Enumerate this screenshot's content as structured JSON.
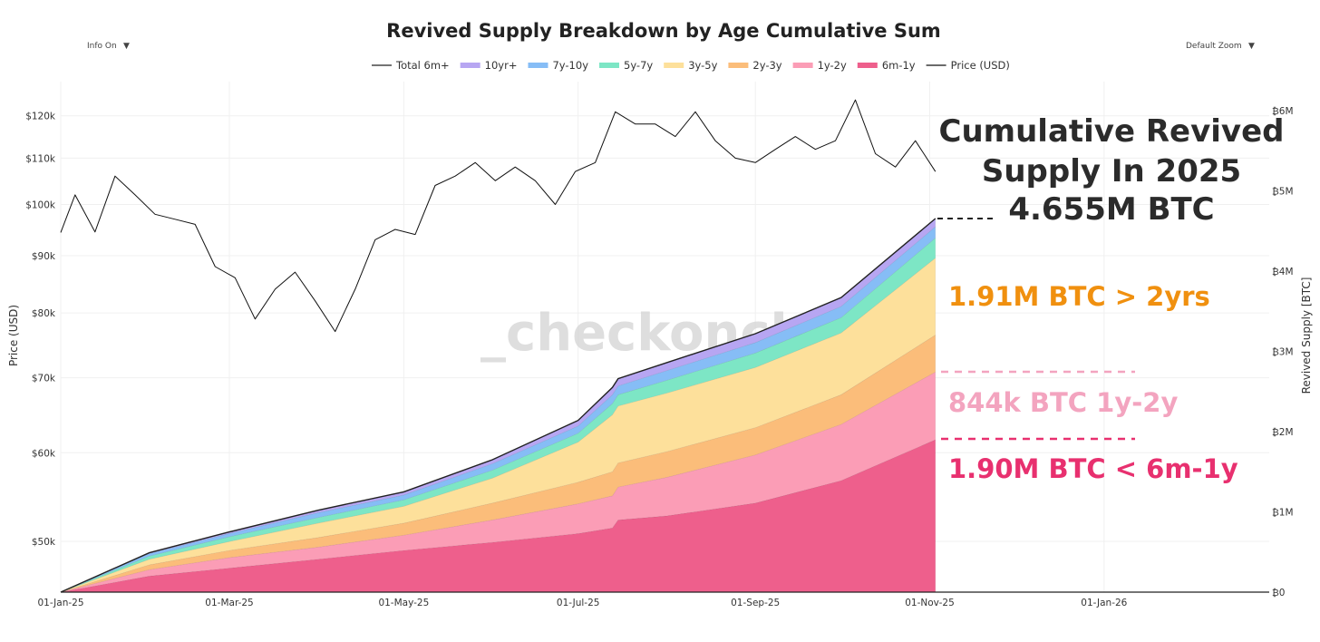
{
  "controls": {
    "info_label": "Info On",
    "zoom_label": "Default Zoom",
    "caret": "▼"
  },
  "watermark": "_checkonchain",
  "annotations": {
    "headline_line1": "Cumulative Revived",
    "headline_line2": "Supply In 2025",
    "headline_line3": "4.655M BTC",
    "over2y": "1.91M BTC > 2yrs",
    "y1to2": "844k BTC 1y-2y",
    "m6to1y": "1.90M BTC < 6m-1y",
    "over2y_color": "#f0900f",
    "y1to2_color": "#f3a4bf",
    "m6to1y_color": "#e8306f"
  },
  "chart_data": {
    "type": "area",
    "title": "Revived Supply Breakdown by Age Cumulative Sum",
    "xlabel": "",
    "ylabel_left": "Price (USD)",
    "ylabel_right": "Revived Supply [BTC]",
    "left_axis_scale": "log",
    "left_ticks": [
      {
        "v": 50000,
        "label": "$50k"
      },
      {
        "v": 60000,
        "label": "$60k"
      },
      {
        "v": 70000,
        "label": "$70k"
      },
      {
        "v": 80000,
        "label": "$80k"
      },
      {
        "v": 90000,
        "label": "$90k"
      },
      {
        "v": 100000,
        "label": "$100k"
      },
      {
        "v": 110000,
        "label": "$110k"
      },
      {
        "v": 120000,
        "label": "$120k"
      }
    ],
    "right_ticks": [
      {
        "v": 0,
        "label": "₿0"
      },
      {
        "v": 1,
        "label": "₿1M"
      },
      {
        "v": 2,
        "label": "₿2M"
      },
      {
        "v": 3,
        "label": "₿3M"
      },
      {
        "v": 4,
        "label": "₿4M"
      },
      {
        "v": 5,
        "label": "₿5M"
      },
      {
        "v": 6,
        "label": "₿6M"
      }
    ],
    "x_ticks": [
      {
        "date": "2025-01-01",
        "label": "01-Jan-25"
      },
      {
        "date": "2025-03-01",
        "label": "01-Mar-25"
      },
      {
        "date": "2025-05-01",
        "label": "01-May-25"
      },
      {
        "date": "2025-07-01",
        "label": "01-Jul-25"
      },
      {
        "date": "2025-09-01",
        "label": "01-Sep-25"
      },
      {
        "date": "2025-11-01",
        "label": "01-Nov-25"
      },
      {
        "date": "2026-01-01",
        "label": "01-Jan-26"
      }
    ],
    "xlim": [
      "2025-01-01",
      "2026-02-15"
    ],
    "ylim_right": [
      0,
      6
    ],
    "ylim_left": [
      44000,
      128000
    ],
    "grid": true,
    "legend_placement": "top-center",
    "legend": [
      {
        "name": "Total 6m+",
        "kind": "line",
        "color": "#222222"
      },
      {
        "name": "10yr+",
        "kind": "area",
        "color": "#b7a6f2"
      },
      {
        "name": "7y-10y",
        "kind": "area",
        "color": "#86bdf6"
      },
      {
        "name": "5y-7y",
        "kind": "area",
        "color": "#7de6c5"
      },
      {
        "name": "3y-5y",
        "kind": "area",
        "color": "#fde09b"
      },
      {
        "name": "2y-3y",
        "kind": "area",
        "color": "#fbbd7a"
      },
      {
        "name": "1y-2y",
        "kind": "area",
        "color": "#fb9db6"
      },
      {
        "name": "6m-1y",
        "kind": "area",
        "color": "#ee5f8c"
      },
      {
        "name": "Price (USD)",
        "kind": "line",
        "color": "#111111"
      }
    ],
    "supply_dates": [
      "2025-01-01",
      "2025-02-01",
      "2025-03-01",
      "2025-04-01",
      "2025-05-01",
      "2025-06-01",
      "2025-07-01",
      "2025-07-13",
      "2025-07-15",
      "2025-08-01",
      "2025-09-01",
      "2025-10-01",
      "2025-11-03"
    ],
    "supply_unit": "M BTC",
    "series": [
      {
        "name": "6m-1y",
        "values": [
          0,
          0.2,
          0.3,
          0.41,
          0.52,
          0.62,
          0.73,
          0.8,
          0.9,
          0.95,
          1.11,
          1.39,
          1.9
        ]
      },
      {
        "name": "1y-2y",
        "values": [
          0,
          0.08,
          0.13,
          0.15,
          0.19,
          0.28,
          0.37,
          0.4,
          0.41,
          0.48,
          0.6,
          0.7,
          0.844
        ]
      },
      {
        "name": "2y-3y",
        "values": [
          0,
          0.06,
          0.09,
          0.12,
          0.15,
          0.21,
          0.27,
          0.3,
          0.3,
          0.32,
          0.34,
          0.37,
          0.46
        ]
      },
      {
        "name": "3y-5y",
        "values": [
          0,
          0.07,
          0.11,
          0.18,
          0.21,
          0.31,
          0.5,
          0.71,
          0.71,
          0.73,
          0.75,
          0.77,
          0.96
        ]
      },
      {
        "name": "5y-7y",
        "values": [
          0,
          0.04,
          0.06,
          0.07,
          0.08,
          0.1,
          0.11,
          0.14,
          0.14,
          0.16,
          0.18,
          0.19,
          0.25
        ]
      },
      {
        "name": "7y-10y",
        "values": [
          0,
          0.03,
          0.04,
          0.06,
          0.06,
          0.08,
          0.09,
          0.11,
          0.11,
          0.12,
          0.13,
          0.14,
          0.14
        ]
      },
      {
        "name": "10yr+",
        "values": [
          0,
          0.01,
          0.02,
          0.03,
          0.04,
          0.05,
          0.07,
          0.09,
          0.09,
          0.1,
          0.11,
          0.11,
          0.101
        ]
      }
    ],
    "price": {
      "name": "Price (USD)",
      "dates": [
        "2025-01-01",
        "2025-01-06",
        "2025-01-13",
        "2025-01-20",
        "2025-01-27",
        "2025-02-03",
        "2025-02-10",
        "2025-02-17",
        "2025-02-24",
        "2025-03-03",
        "2025-03-10",
        "2025-03-17",
        "2025-03-24",
        "2025-03-31",
        "2025-04-07",
        "2025-04-14",
        "2025-04-21",
        "2025-04-28",
        "2025-05-05",
        "2025-05-12",
        "2025-05-19",
        "2025-05-26",
        "2025-06-02",
        "2025-06-09",
        "2025-06-16",
        "2025-06-23",
        "2025-06-30",
        "2025-07-07",
        "2025-07-14",
        "2025-07-21",
        "2025-07-28",
        "2025-08-04",
        "2025-08-11",
        "2025-08-18",
        "2025-08-25",
        "2025-09-01",
        "2025-09-08",
        "2025-09-15",
        "2025-09-22",
        "2025-09-29",
        "2025-10-06",
        "2025-10-13",
        "2025-10-20",
        "2025-10-27",
        "2025-11-03"
      ],
      "values": [
        94400,
        102000,
        94500,
        106000,
        102000,
        98000,
        97000,
        96000,
        88000,
        86000,
        79000,
        84000,
        87000,
        82000,
        77000,
        84000,
        93000,
        95000,
        94000,
        104000,
        106000,
        109000,
        105000,
        108000,
        105000,
        100000,
        107000,
        109000,
        121000,
        118000,
        118000,
        115000,
        121000,
        114000,
        110000,
        109000,
        112000,
        115000,
        112000,
        114000,
        124000,
        111000,
        108000,
        114000,
        107000
      ]
    }
  }
}
